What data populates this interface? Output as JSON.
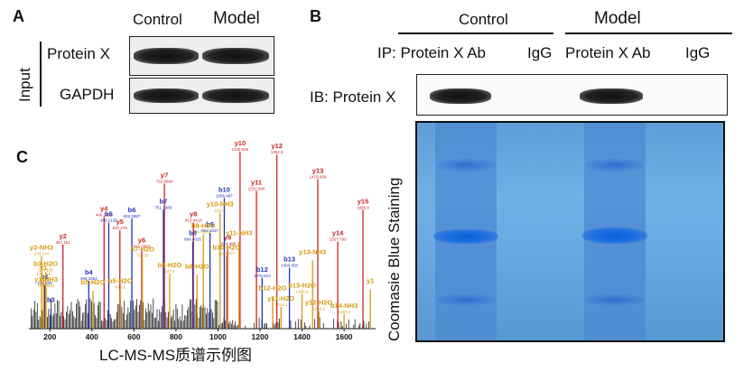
{
  "panelA": {
    "letter": "A",
    "col_control": "Control",
    "col_model": "Model",
    "side_label": "Input",
    "row1": "Protein X",
    "row2": "GAPDH"
  },
  "panelB": {
    "letter": "B",
    "group_control": "Control",
    "group_model": "Model",
    "ip_prefix": "IP: Protein X Ab",
    "lane_igg1": "IgG",
    "lane_ab2": "Protein X Ab",
    "lane_igg2": "IgG",
    "ib_label": "IB: Protein X",
    "stain_label": "Coomasie Blue Staining"
  },
  "panelC": {
    "letter": "C",
    "caption": "LC-MS-MS质谱示例图",
    "chart_data": {
      "type": "bar",
      "xlabel": "",
      "ylabel": "",
      "xlim": [
        100,
        1750
      ],
      "xticks": [
        200,
        400,
        600,
        800,
        1000,
        1200,
        1400,
        1600
      ],
      "peaks": [
        {
          "mz": 262,
          "h": 0.58,
          "color": "#cc2222",
          "label": "y2",
          "val": "287.161"
        },
        {
          "mz": 458,
          "h": 0.77,
          "color": "#cc2222",
          "label": "y4",
          "val": "466.2428"
        },
        {
          "mz": 533,
          "h": 0.68,
          "color": "#cc2222",
          "label": "y5",
          "val": "537.279"
        },
        {
          "mz": 637,
          "h": 0.55,
          "color": "#cc2222",
          "label": "y6",
          "val": "650.3363"
        },
        {
          "mz": 745,
          "h": 1.0,
          "color": "#cc2222",
          "label": "y7",
          "val": "752.0684"
        },
        {
          "mz": 883,
          "h": 0.73,
          "color": "#cc2222",
          "label": "y8",
          "val": "913.4418"
        },
        {
          "mz": 1045,
          "h": 0.57,
          "color": "#cc2222",
          "label": "y9",
          "val": "1016.489"
        },
        {
          "mz": 1105,
          "h": 1.22,
          "color": "#cc2222",
          "label": "y10",
          "val": "1130.525"
        },
        {
          "mz": 1183,
          "h": 0.95,
          "color": "#cc2222",
          "label": "y11",
          "val": "1251.580"
        },
        {
          "mz": 1280,
          "h": 1.2,
          "color": "#cc2222",
          "label": "y12",
          "val": "1352.6"
        },
        {
          "mz": 1475,
          "h": 1.03,
          "color": "#cc2222",
          "label": "y13",
          "val": "1479.669"
        },
        {
          "mz": 1570,
          "h": 0.6,
          "color": "#cc2222",
          "label": "y14",
          "val": "1557.793"
        },
        {
          "mz": 1690,
          "h": 0.82,
          "color": "#cc2222",
          "label": "y15",
          "val": "1685.8"
        },
        {
          "mz": 175,
          "h": 0.3,
          "color": "#2233bb",
          "label": "b1",
          "val": "129.509"
        },
        {
          "mz": 205,
          "h": 0.14,
          "color": "#2233bb",
          "label": "b3",
          "val": ""
        },
        {
          "mz": 385,
          "h": 0.33,
          "color": "#2233bb",
          "label": "b4",
          "val": "395.1862"
        },
        {
          "mz": 480,
          "h": 0.73,
          "color": "#2233bb",
          "label": "b5",
          "val": "489.2135"
        },
        {
          "mz": 590,
          "h": 0.76,
          "color": "#2233bb",
          "label": "b6",
          "val": "602.2987"
        },
        {
          "mz": 740,
          "h": 0.82,
          "color": "#2233bb",
          "label": "b7",
          "val": "751.3388"
        },
        {
          "mz": 880,
          "h": 0.6,
          "color": "#2233bb",
          "label": "b8",
          "val": "864.4026"
        },
        {
          "mz": 962,
          "h": 0.66,
          "color": "#2233bb",
          "label": "b9",
          "val": "962.4037"
        },
        {
          "mz": 1030,
          "h": 0.9,
          "color": "#2233bb",
          "label": "b10",
          "val": "1006.487"
        },
        {
          "mz": 1210,
          "h": 0.35,
          "color": "#2233bb",
          "label": "b12",
          "val": "1276.524"
        },
        {
          "mz": 1340,
          "h": 0.42,
          "color": "#2233bb",
          "label": "b13",
          "val": "1404.650"
        },
        {
          "mz": 160,
          "h": 0.5,
          "color": "#d49a10",
          "label": "y2-NH3",
          "val": "243.144"
        },
        {
          "mz": 180,
          "h": 0.39,
          "color": "#d49a10",
          "label": "b3-H2O",
          "val": "274.138"
        },
        {
          "mz": 170,
          "h": 0.36,
          "color": "#d49a10",
          "label": "y1",
          "val": "175.119"
        },
        {
          "mz": 182,
          "h": 0.28,
          "color": "#d49a10",
          "label": "y1-NH3",
          "val": "158.0924"
        },
        {
          "mz": 405,
          "h": 0.26,
          "color": "#d49a10",
          "label": "b5-H2O",
          "val": ""
        },
        {
          "mz": 535,
          "h": 0.27,
          "color": "#d49a10",
          "label": "b5-H2O",
          "val": "471.2"
        },
        {
          "mz": 640,
          "h": 0.49,
          "color": "#d49a10",
          "label": "b7-H2O",
          "val": "733.32"
        },
        {
          "mz": 770,
          "h": 0.38,
          "color": "#d49a10",
          "label": "b8-H2O",
          "val": "847.4"
        },
        {
          "mz": 900,
          "h": 0.37,
          "color": "#d49a10",
          "label": "b8-H2O",
          "val": ""
        },
        {
          "mz": 930,
          "h": 0.65,
          "color": "#d49a10",
          "label": "b9-H2O",
          "val": "947.4291"
        },
        {
          "mz": 1010,
          "h": 0.8,
          "color": "#d49a10",
          "label": "y10-NH3",
          "val": "1113.4"
        },
        {
          "mz": 1040,
          "h": 0.5,
          "color": "#d49a10",
          "label": "b10-H2O",
          "val": "1048.477"
        },
        {
          "mz": 1100,
          "h": 0.6,
          "color": "#d49a10",
          "label": "y11-NH3",
          "val": ""
        },
        {
          "mz": 1260,
          "h": 0.22,
          "color": "#d49a10",
          "label": "b12-H2O",
          "val": ""
        },
        {
          "mz": 1300,
          "h": 0.15,
          "color": "#d49a10",
          "label": "y11-H2O",
          "val": "1244.1"
        },
        {
          "mz": 1400,
          "h": 0.24,
          "color": "#d49a10",
          "label": "b13-H2O",
          "val": "1386.6"
        },
        {
          "mz": 1450,
          "h": 0.47,
          "color": "#d49a10",
          "label": "y13-NH3",
          "val": ""
        },
        {
          "mz": 1480,
          "h": 0.12,
          "color": "#d49a10",
          "label": "y12-H2O",
          "val": "1334.6"
        },
        {
          "mz": 1600,
          "h": 0.1,
          "color": "#d49a10",
          "label": "b14-NH3",
          "val": "1487.3"
        },
        {
          "mz": 1725,
          "h": 0.27,
          "color": "#d49a10",
          "label": "y1",
          "val": ""
        }
      ]
    }
  }
}
